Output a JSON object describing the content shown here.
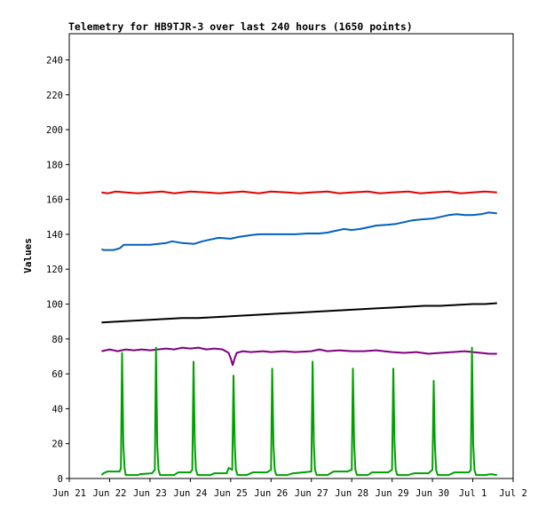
{
  "chart_data": {
    "type": "line",
    "title": "Telemetry for HB9TJR-3 over last 240 hours (1650 points)",
    "xlabel": "",
    "ylabel": "Values",
    "ylim": [
      0,
      255
    ],
    "yticks": [
      0,
      20,
      40,
      60,
      80,
      100,
      120,
      140,
      160,
      180,
      200,
      220,
      240
    ],
    "xlim": [
      0,
      11
    ],
    "x_unit": "days since Jun 21",
    "xticks": [
      {
        "label": "Jun 21",
        "x": 0
      },
      {
        "label": "Jun 22",
        "x": 1
      },
      {
        "label": "Jun 23",
        "x": 2
      },
      {
        "label": "Jun 24",
        "x": 3
      },
      {
        "label": "Jun 25",
        "x": 4
      },
      {
        "label": "Jun 26",
        "x": 5
      },
      {
        "label": "Jun 27",
        "x": 6
      },
      {
        "label": "Jun 28",
        "x": 7
      },
      {
        "label": "Jun 29",
        "x": 8
      },
      {
        "label": "Jun 30",
        "x": 9
      },
      {
        "label": "Jul 1",
        "x": 10
      },
      {
        "label": "Jul 2",
        "x": 11
      }
    ],
    "grid": false,
    "series": [
      {
        "color": "#e00000",
        "points": [
          [
            0.8,
            164
          ],
          [
            0.95,
            163.5
          ],
          [
            1.15,
            164.5
          ],
          [
            1.4,
            164
          ],
          [
            1.7,
            163.5
          ],
          [
            2.0,
            164
          ],
          [
            2.3,
            164.5
          ],
          [
            2.6,
            163.5
          ],
          [
            3.0,
            164.5
          ],
          [
            3.4,
            164
          ],
          [
            3.7,
            163.5
          ],
          [
            4.0,
            164
          ],
          [
            4.3,
            164.5
          ],
          [
            4.7,
            163.5
          ],
          [
            5.0,
            164.5
          ],
          [
            5.4,
            164
          ],
          [
            5.7,
            163.5
          ],
          [
            6.0,
            164
          ],
          [
            6.4,
            164.5
          ],
          [
            6.7,
            163.5
          ],
          [
            7.0,
            164
          ],
          [
            7.4,
            164.5
          ],
          [
            7.7,
            163.5
          ],
          [
            8.0,
            164
          ],
          [
            8.4,
            164.5
          ],
          [
            8.7,
            163.5
          ],
          [
            9.0,
            164
          ],
          [
            9.4,
            164.5
          ],
          [
            9.7,
            163.5
          ],
          [
            10.0,
            164
          ],
          [
            10.3,
            164.5
          ],
          [
            10.6,
            164
          ]
        ]
      },
      {
        "color": "#0060c0",
        "points": [
          [
            0.8,
            131.5
          ],
          [
            0.85,
            131
          ],
          [
            1.1,
            131
          ],
          [
            1.25,
            132
          ],
          [
            1.35,
            134
          ],
          [
            1.6,
            134
          ],
          [
            2.0,
            134
          ],
          [
            2.2,
            134.5
          ],
          [
            2.4,
            135
          ],
          [
            2.55,
            136
          ],
          [
            2.8,
            135
          ],
          [
            3.1,
            134.5
          ],
          [
            3.3,
            136
          ],
          [
            3.5,
            137
          ],
          [
            3.7,
            138
          ],
          [
            4.0,
            137.5
          ],
          [
            4.2,
            138.5
          ],
          [
            4.5,
            139.5
          ],
          [
            4.7,
            140
          ],
          [
            5.0,
            140
          ],
          [
            5.3,
            140
          ],
          [
            5.6,
            140
          ],
          [
            5.9,
            140.5
          ],
          [
            6.2,
            140.5
          ],
          [
            6.4,
            141
          ],
          [
            6.6,
            142
          ],
          [
            6.8,
            143
          ],
          [
            7.0,
            142.5
          ],
          [
            7.2,
            143
          ],
          [
            7.4,
            144
          ],
          [
            7.6,
            145
          ],
          [
            7.9,
            145.5
          ],
          [
            8.1,
            146
          ],
          [
            8.3,
            147
          ],
          [
            8.5,
            148
          ],
          [
            8.7,
            148.5
          ],
          [
            9.0,
            149
          ],
          [
            9.2,
            150
          ],
          [
            9.4,
            151
          ],
          [
            9.6,
            151.5
          ],
          [
            9.8,
            151
          ],
          [
            10.0,
            151
          ],
          [
            10.2,
            151.5
          ],
          [
            10.4,
            152.5
          ],
          [
            10.6,
            152
          ]
        ]
      },
      {
        "color": "#000000",
        "points": [
          [
            0.8,
            89.5
          ],
          [
            1.2,
            90
          ],
          [
            1.6,
            90.5
          ],
          [
            2.0,
            91
          ],
          [
            2.4,
            91.5
          ],
          [
            2.8,
            92
          ],
          [
            3.2,
            92
          ],
          [
            3.6,
            92.5
          ],
          [
            4.0,
            93
          ],
          [
            4.4,
            93.5
          ],
          [
            4.8,
            94
          ],
          [
            5.2,
            94.5
          ],
          [
            5.6,
            95
          ],
          [
            6.0,
            95.5
          ],
          [
            6.4,
            96
          ],
          [
            6.8,
            96.5
          ],
          [
            7.2,
            97
          ],
          [
            7.6,
            97.5
          ],
          [
            8.0,
            98
          ],
          [
            8.4,
            98.5
          ],
          [
            8.8,
            99
          ],
          [
            9.2,
            99
          ],
          [
            9.6,
            99.5
          ],
          [
            10.0,
            100
          ],
          [
            10.3,
            100
          ],
          [
            10.6,
            100.5
          ]
        ]
      },
      {
        "color": "#800080",
        "points": [
          [
            0.8,
            73
          ],
          [
            1.0,
            74
          ],
          [
            1.2,
            73
          ],
          [
            1.4,
            74
          ],
          [
            1.6,
            73.5
          ],
          [
            1.8,
            74
          ],
          [
            2.0,
            73.5
          ],
          [
            2.2,
            74
          ],
          [
            2.4,
            74.5
          ],
          [
            2.6,
            74
          ],
          [
            2.8,
            75
          ],
          [
            3.0,
            74.5
          ],
          [
            3.2,
            75
          ],
          [
            3.4,
            74
          ],
          [
            3.6,
            74.5
          ],
          [
            3.8,
            74
          ],
          [
            3.95,
            72
          ],
          [
            4.0,
            69
          ],
          [
            4.05,
            65
          ],
          [
            4.1,
            69
          ],
          [
            4.15,
            72
          ],
          [
            4.3,
            73
          ],
          [
            4.5,
            72.5
          ],
          [
            4.8,
            73
          ],
          [
            5.0,
            72.5
          ],
          [
            5.3,
            73
          ],
          [
            5.6,
            72.5
          ],
          [
            6.0,
            73
          ],
          [
            6.2,
            74
          ],
          [
            6.4,
            73
          ],
          [
            6.7,
            73.5
          ],
          [
            7.0,
            73
          ],
          [
            7.3,
            73
          ],
          [
            7.6,
            73.5
          ],
          [
            8.0,
            72.5
          ],
          [
            8.3,
            72
          ],
          [
            8.6,
            72.5
          ],
          [
            8.9,
            71.5
          ],
          [
            9.2,
            72
          ],
          [
            9.5,
            72.5
          ],
          [
            9.8,
            73
          ],
          [
            10.0,
            72.5
          ],
          [
            10.2,
            72
          ],
          [
            10.4,
            71.5
          ],
          [
            10.6,
            71.5
          ]
        ]
      },
      {
        "color": "#00a000",
        "points": [
          [
            0.8,
            2
          ],
          [
            0.85,
            3
          ],
          [
            0.95,
            4
          ],
          [
            1.25,
            4
          ],
          [
            1.28,
            6
          ],
          [
            1.31,
            72
          ],
          [
            1.34,
            20
          ],
          [
            1.37,
            6
          ],
          [
            1.4,
            2
          ],
          [
            1.7,
            2
          ],
          [
            1.75,
            2.5
          ],
          [
            2.05,
            3
          ],
          [
            2.12,
            5
          ],
          [
            2.15,
            75
          ],
          [
            2.18,
            20
          ],
          [
            2.21,
            5
          ],
          [
            2.25,
            2
          ],
          [
            2.6,
            2
          ],
          [
            2.7,
            3.5
          ],
          [
            3.0,
            3.5
          ],
          [
            3.05,
            5
          ],
          [
            3.08,
            67
          ],
          [
            3.11,
            20
          ],
          [
            3.14,
            5
          ],
          [
            3.18,
            2
          ],
          [
            3.5,
            2
          ],
          [
            3.6,
            3
          ],
          [
            3.9,
            3
          ],
          [
            3.95,
            6
          ],
          [
            4.0,
            5.5
          ],
          [
            4.04,
            5
          ],
          [
            4.07,
            59
          ],
          [
            4.1,
            20
          ],
          [
            4.13,
            5
          ],
          [
            4.17,
            2
          ],
          [
            4.4,
            2
          ],
          [
            4.55,
            3.5
          ],
          [
            4.9,
            3.5
          ],
          [
            5.0,
            5
          ],
          [
            5.03,
            63
          ],
          [
            5.06,
            20
          ],
          [
            5.09,
            5
          ],
          [
            5.13,
            2
          ],
          [
            5.4,
            2
          ],
          [
            5.55,
            3
          ],
          [
            5.8,
            3.5
          ],
          [
            6.0,
            4
          ],
          [
            6.03,
            67
          ],
          [
            6.06,
            20
          ],
          [
            6.09,
            5
          ],
          [
            6.13,
            2
          ],
          [
            6.4,
            2
          ],
          [
            6.55,
            4
          ],
          [
            6.9,
            4
          ],
          [
            7.0,
            5
          ],
          [
            7.03,
            63
          ],
          [
            7.06,
            20
          ],
          [
            7.09,
            5
          ],
          [
            7.13,
            2
          ],
          [
            7.4,
            2
          ],
          [
            7.5,
            3.5
          ],
          [
            7.9,
            3.5
          ],
          [
            8.0,
            5
          ],
          [
            8.03,
            63
          ],
          [
            8.06,
            20
          ],
          [
            8.09,
            5
          ],
          [
            8.13,
            2
          ],
          [
            8.4,
            2
          ],
          [
            8.55,
            3
          ],
          [
            8.9,
            3
          ],
          [
            9.0,
            5
          ],
          [
            9.03,
            56
          ],
          [
            9.06,
            20
          ],
          [
            9.09,
            5
          ],
          [
            9.13,
            2
          ],
          [
            9.4,
            2
          ],
          [
            9.55,
            3.5
          ],
          [
            9.9,
            3.5
          ],
          [
            9.95,
            5
          ],
          [
            9.98,
            75
          ],
          [
            10.01,
            20
          ],
          [
            10.04,
            5
          ],
          [
            10.08,
            2
          ],
          [
            10.3,
            2
          ],
          [
            10.45,
            2.5
          ],
          [
            10.6,
            2
          ]
        ]
      }
    ]
  }
}
